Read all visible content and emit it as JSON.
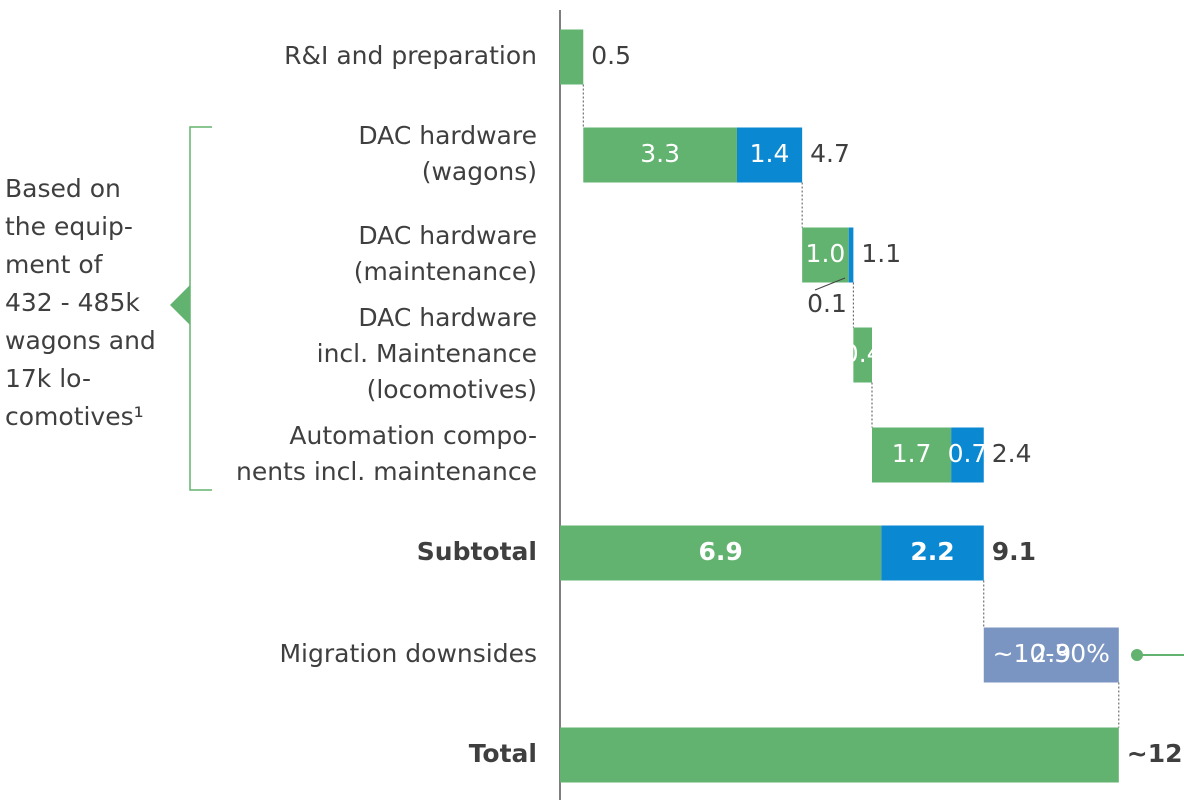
{
  "chart_data": {
    "type": "waterfall",
    "categories": [
      [
        "R&I and preparation"
      ],
      [
        "DAC hardware",
        "(wagons)"
      ],
      [
        "DAC hardware",
        "(maintenance)"
      ],
      [
        "DAC hardware",
        "incl. Maintenance",
        "(locomotives)"
      ],
      [
        "Automation compo-",
        "nents incl. maintenance"
      ],
      [
        "Subtotal"
      ],
      [
        "Migration downsides"
      ],
      [
        "Total"
      ]
    ],
    "measure": [
      "relative",
      "relative",
      "relative",
      "relative",
      "relative",
      "total",
      "relative",
      "total"
    ],
    "series": [
      {
        "color": "#62b36f",
        "values": [
          0.5,
          3.3,
          1.0,
          0.4,
          1.7,
          6.9,
          null,
          12
        ],
        "value_labels": [
          "0.5",
          "3.3",
          "1.0",
          "0.4",
          "1.7",
          "6.9",
          null,
          "~12"
        ]
      },
      {
        "color": "#0a88d2",
        "values": [
          null,
          1.4,
          0.1,
          null,
          0.7,
          2.2,
          null,
          null
        ]
      },
      {
        "color": "#7b95c2",
        "values": [
          null,
          null,
          null,
          null,
          null,
          null,
          2.9,
          null
        ]
      }
    ],
    "totals": [
      null,
      4.7,
      1.1,
      null,
      2.4,
      9.1,
      null,
      null
    ],
    "annotation": "~10-30%",
    "xlim": [
      0,
      13.4
    ],
    "bracket_note": [
      "Based on",
      "the equip-",
      "ment of",
      "432 - 485k",
      "wagons and",
      "17k lo-",
      "comotives¹"
    ]
  }
}
